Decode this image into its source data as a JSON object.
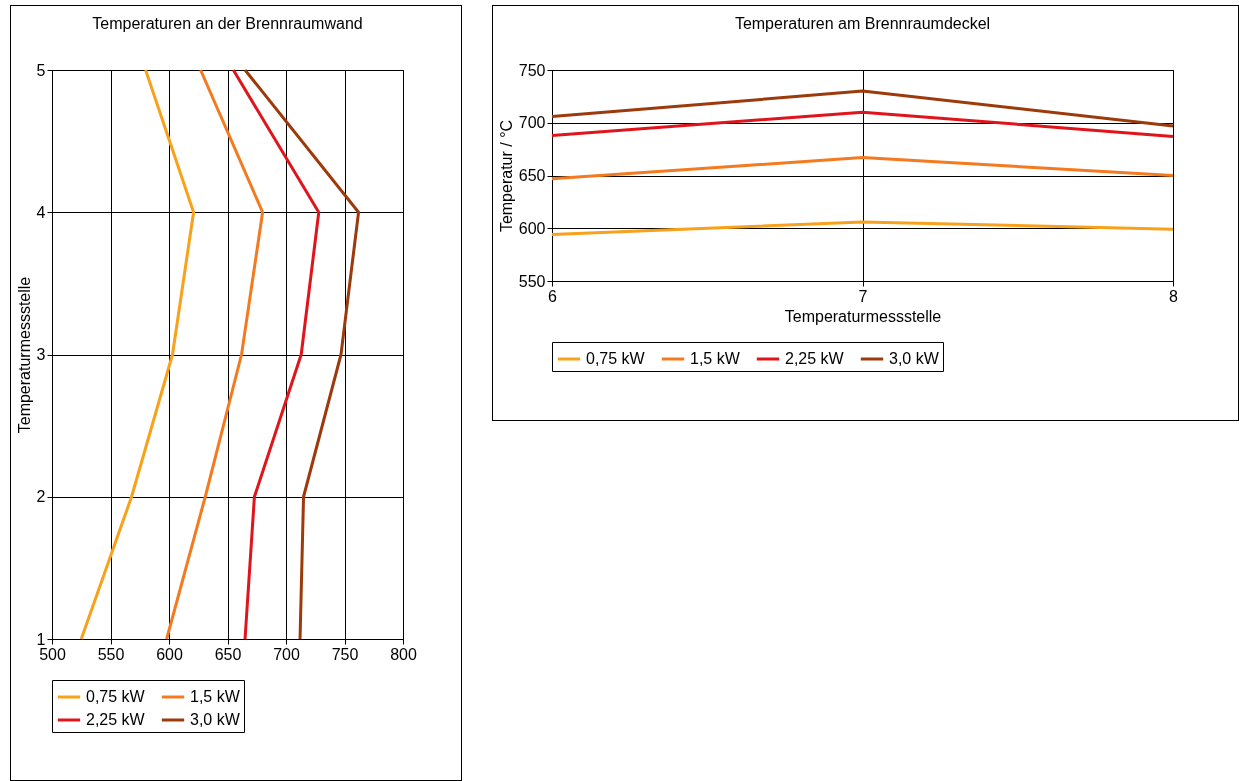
{
  "chart_data": [
    {
      "type": "line",
      "title": "Temperaturen an der Brennraumwand",
      "ylabel": "Temperaturmessstelle",
      "xlim": [
        500,
        800
      ],
      "xticks": [
        500,
        550,
        600,
        650,
        700,
        750,
        800
      ],
      "ylim": [
        1,
        5
      ],
      "yticks": [
        1,
        2,
        3,
        4,
        5
      ],
      "grid": true,
      "legend": "bottom",
      "series": [
        {
          "name": "0,75 kW",
          "color": "#f9a11b",
          "x": [
            525,
            568,
            603,
            621,
            580
          ],
          "values": [
            1,
            2,
            3,
            4,
            5
          ]
        },
        {
          "name": "1,5 kW",
          "color": "#f47a20",
          "x": [
            598,
            631,
            662,
            680,
            627
          ],
          "values": [
            1,
            2,
            3,
            4,
            5
          ]
        },
        {
          "name": "2,25 kW",
          "color": "#e0141b",
          "x": [
            665,
            673,
            713,
            728,
            655
          ],
          "values": [
            1,
            2,
            3,
            4,
            5
          ]
        },
        {
          "name": "3,0 kW",
          "color": "#9c3a0c",
          "x": [
            712,
            715,
            747,
            762,
            665
          ],
          "values": [
            1,
            2,
            3,
            4,
            5
          ]
        }
      ]
    },
    {
      "type": "line",
      "title": "Temperaturen am Brennraumdeckel",
      "xlabel": "Temperaturmessstelle",
      "ylabel": "Temperatur / °C",
      "x": [
        6,
        7,
        8
      ],
      "xlim": [
        6,
        8
      ],
      "xticks": [
        6,
        7,
        8
      ],
      "ylim": [
        550,
        750
      ],
      "yticks": [
        550,
        600,
        650,
        700,
        750
      ],
      "grid": true,
      "legend": "bottom",
      "series": [
        {
          "name": "0,75 kW",
          "color": "#f9a11b",
          "values": [
            594,
            606,
            599
          ]
        },
        {
          "name": "1,5 kW",
          "color": "#f47a20",
          "values": [
            647,
            667,
            650
          ]
        },
        {
          "name": "2,25 kW",
          "color": "#e0141b",
          "values": [
            688,
            710,
            687
          ]
        },
        {
          "name": "3,0 kW",
          "color": "#9c3a0c",
          "values": [
            706,
            730,
            697
          ]
        }
      ]
    }
  ]
}
